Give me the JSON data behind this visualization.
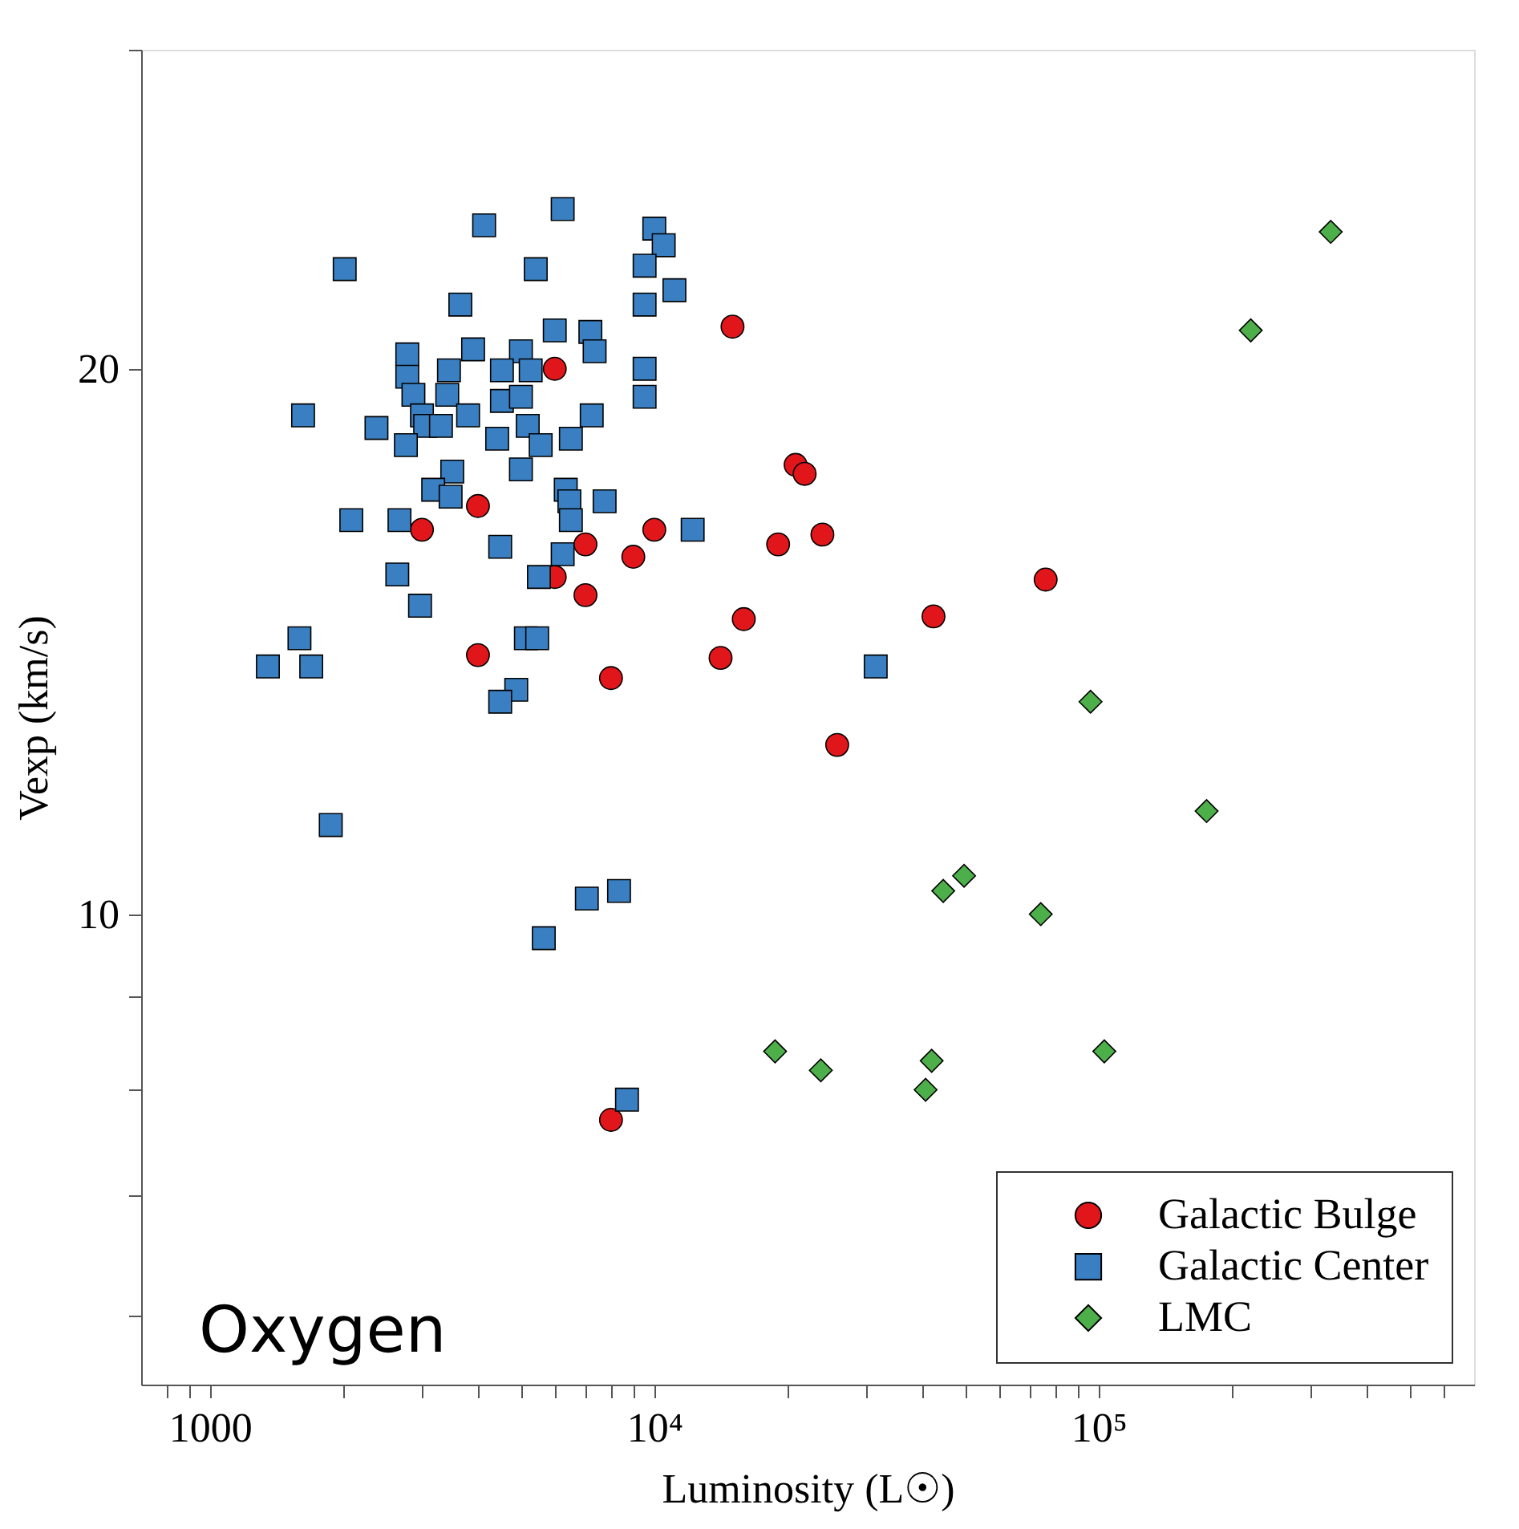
{
  "chart_data": {
    "type": "scatter",
    "xlabel": "Luminosity (L☉)",
    "ylabel": "Vexp (km/s)",
    "log": "xy",
    "grid": false,
    "legend": "bottom right",
    "xlim": [
      700,
      700000
    ],
    "xticks": [
      {
        "value": 800,
        "label": null
      },
      {
        "value": 900,
        "label": null
      },
      1000,
      {
        "value": 2000,
        "label": null
      },
      {
        "value": 3000,
        "label": null
      },
      {
        "value": 4000,
        "label": null
      },
      {
        "value": 5000,
        "label": null
      },
      {
        "value": 6000,
        "label": null
      },
      {
        "value": 7000,
        "label": null
      },
      {
        "value": 8000,
        "label": null
      },
      {
        "value": 9000,
        "label": null
      },
      {
        "value": 10000,
        "label": "10⁴"
      },
      {
        "value": 20000,
        "label": null
      },
      {
        "value": 30000,
        "label": null
      },
      {
        "value": 40000,
        "label": null
      },
      {
        "value": 50000,
        "label": null
      },
      {
        "value": 60000,
        "label": null
      },
      {
        "value": 70000,
        "label": null
      },
      {
        "value": 80000,
        "label": null
      },
      {
        "value": 90000,
        "label": null
      },
      {
        "value": 100000,
        "label": "10⁵"
      },
      {
        "value": 200000,
        "label": null
      },
      {
        "value": 300000,
        "label": null
      },
      {
        "value": 400000,
        "label": null
      },
      {
        "value": 500000,
        "label": null
      },
      {
        "value": 600000,
        "label": null
      }
    ],
    "ylim": [
      5.5,
      30
    ],
    "yticks": [
      {
        "value": 6,
        "label": null
      },
      {
        "value": 7,
        "label": null
      },
      {
        "value": 8,
        "label": null
      },
      {
        "value": 9,
        "label": null
      },
      10,
      20,
      {
        "value": 30,
        "label": null
      }
    ],
    "annotations": [
      "Oxygen"
    ],
    "series": [
      {
        "name": "Galactic Bulge",
        "color": "#e0161b",
        "marker": "circle",
        "x": [
          5970,
          15000,
          20800,
          21800,
          4010,
          3000,
          10000,
          7000,
          8970,
          19000,
          5970,
          7000,
          15900,
          4010,
          14100,
          7990,
          23900,
          76000,
          42500,
          25800,
          7990
        ],
        "values": [
          20.0,
          21.1,
          17.7,
          17.5,
          16.8,
          16.3,
          16.3,
          16.0,
          15.75,
          16.0,
          15.35,
          15.0,
          14.55,
          13.9,
          13.85,
          13.5,
          16.2,
          15.3,
          14.6,
          12.4,
          7.7
        ]
      },
      {
        "name": "Galactic Center",
        "color": "#3a7fc1",
        "marker": "square",
        "x": [
          6220,
          4140,
          10000,
          10500,
          2010,
          5410,
          9510,
          11100,
          3660,
          9510,
          5970,
          7180,
          7340,
          2780,
          3910,
          5010,
          3450,
          4540,
          5270,
          9510,
          9510,
          2780,
          2870,
          3420,
          4540,
          5010,
          1620,
          3000,
          3810,
          7230,
          2370,
          3050,
          3310,
          5190,
          2760,
          4430,
          5550,
          6490,
          5010,
          3510,
          3180,
          3480,
          6320,
          6440,
          7730,
          6490,
          2080,
          2670,
          12200,
          4500,
          6220,
          2640,
          5500,
          2970,
          1590,
          5140,
          5450,
          1350,
          1690,
          4890,
          4500,
          1870,
          7050,
          8330,
          5640,
          8680,
          31500
        ],
        "values": [
          24.5,
          24.0,
          23.9,
          23.4,
          22.7,
          22.7,
          22.8,
          22.1,
          21.7,
          21.7,
          21.0,
          20.96,
          20.45,
          20.37,
          20.5,
          20.45,
          19.96,
          19.96,
          19.96,
          20.0,
          19.3,
          19.8,
          19.35,
          19.35,
          19.2,
          19.3,
          18.85,
          18.85,
          18.85,
          18.85,
          18.55,
          18.6,
          18.6,
          18.6,
          18.15,
          18.3,
          18.15,
          18.3,
          17.6,
          17.55,
          17.15,
          17.0,
          17.15,
          16.9,
          16.9,
          16.5,
          16.5,
          16.5,
          16.3,
          15.95,
          15.8,
          15.4,
          15.35,
          14.8,
          14.2,
          14.2,
          14.2,
          13.7,
          13.7,
          13.3,
          13.1,
          11.2,
          10.2,
          10.3,
          9.7,
          7.9,
          13.7
        ]
      },
      {
        "name": "LMC",
        "color": "#4daf4a",
        "marker": "diamond",
        "x": [
          333000,
          220000,
          95900,
          175000,
          44700,
          49800,
          74100,
          18700,
          23700,
          42100,
          40800,
          103000
        ],
        "values": [
          23.8,
          21.0,
          13.1,
          11.4,
          10.3,
          10.5,
          10.0,
          8.4,
          8.2,
          8.3,
          8.0,
          8.4
        ]
      }
    ]
  }
}
